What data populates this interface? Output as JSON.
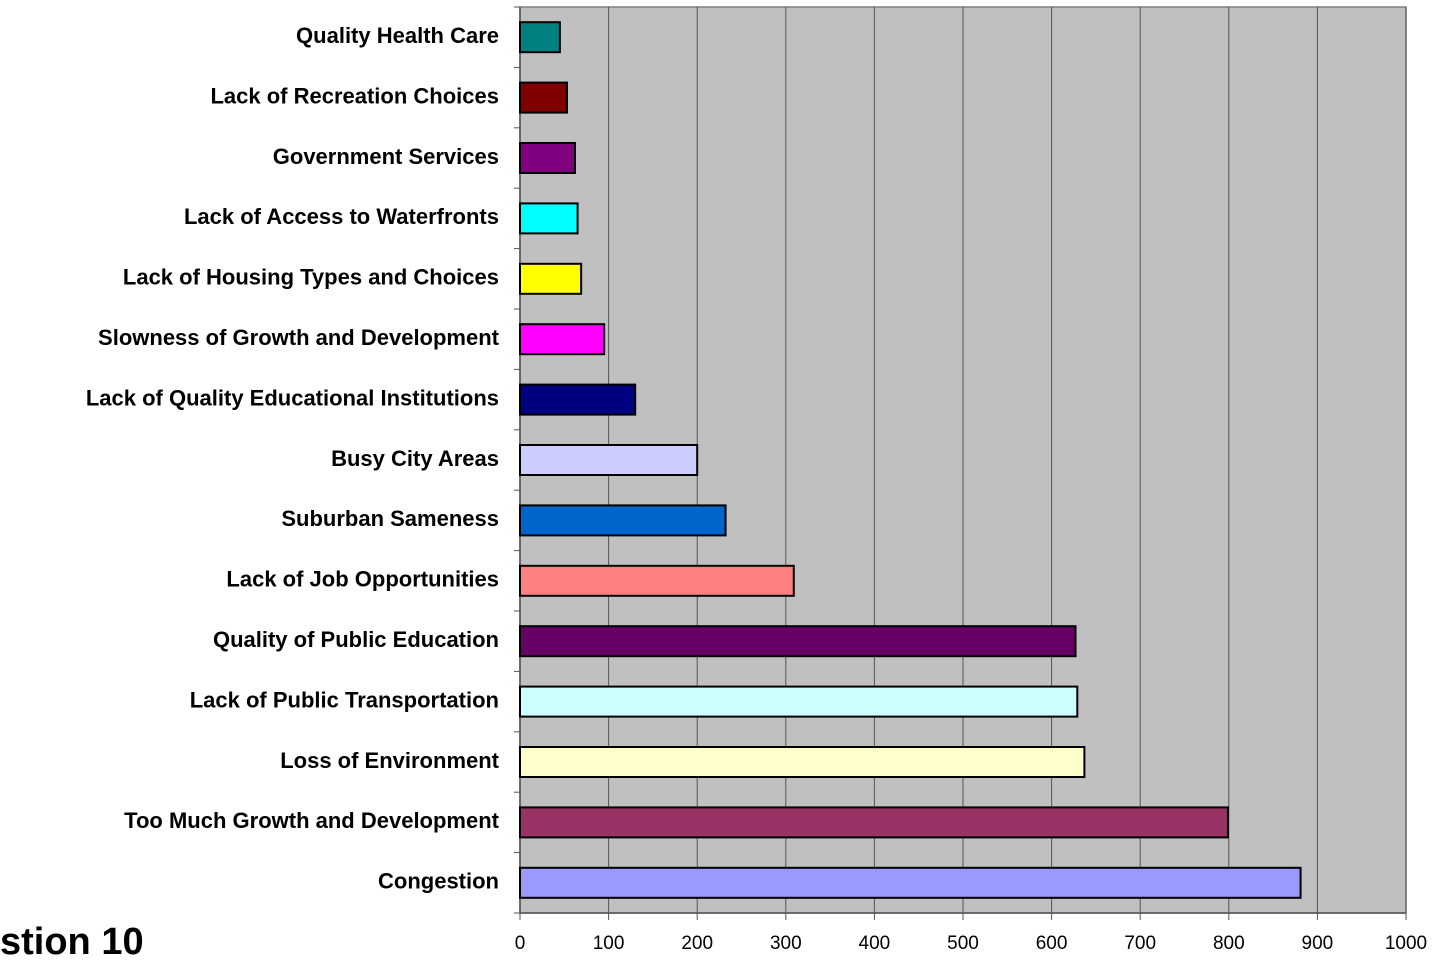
{
  "chart_data": {
    "type": "barh",
    "annotation": "stion 10",
    "categories": [
      "Quality Health Care",
      "Lack of Recreation Choices",
      "Government Services",
      "Lack of Access to Waterfronts",
      "Lack of Housing Types and Choices",
      "Slowness of Growth and Development",
      "Lack of Quality Educational Institutions",
      "Busy City Areas",
      "Suburban Sameness",
      "Lack of Job Opportunities",
      "Quality of Public Education",
      "Lack of Public Transportation",
      "Loss of Environment",
      "Too Much Growth and Development",
      "Congestion"
    ],
    "values": [
      45,
      53,
      62,
      65,
      69,
      95,
      130,
      200,
      232,
      309,
      627,
      629,
      637,
      799,
      881
    ],
    "colors": [
      "#008080",
      "#800000",
      "#800080",
      "#00ffff",
      "#ffff00",
      "#ff00ff",
      "#000080",
      "#ccccff",
      "#0066cc",
      "#ff8080",
      "#660066",
      "#ccffff",
      "#ffffcc",
      "#993366",
      "#9999ff"
    ],
    "xlim": [
      0,
      1000
    ],
    "xticks": [
      0,
      100,
      200,
      300,
      400,
      500,
      600,
      700,
      800,
      900,
      1000
    ],
    "grid": true
  }
}
